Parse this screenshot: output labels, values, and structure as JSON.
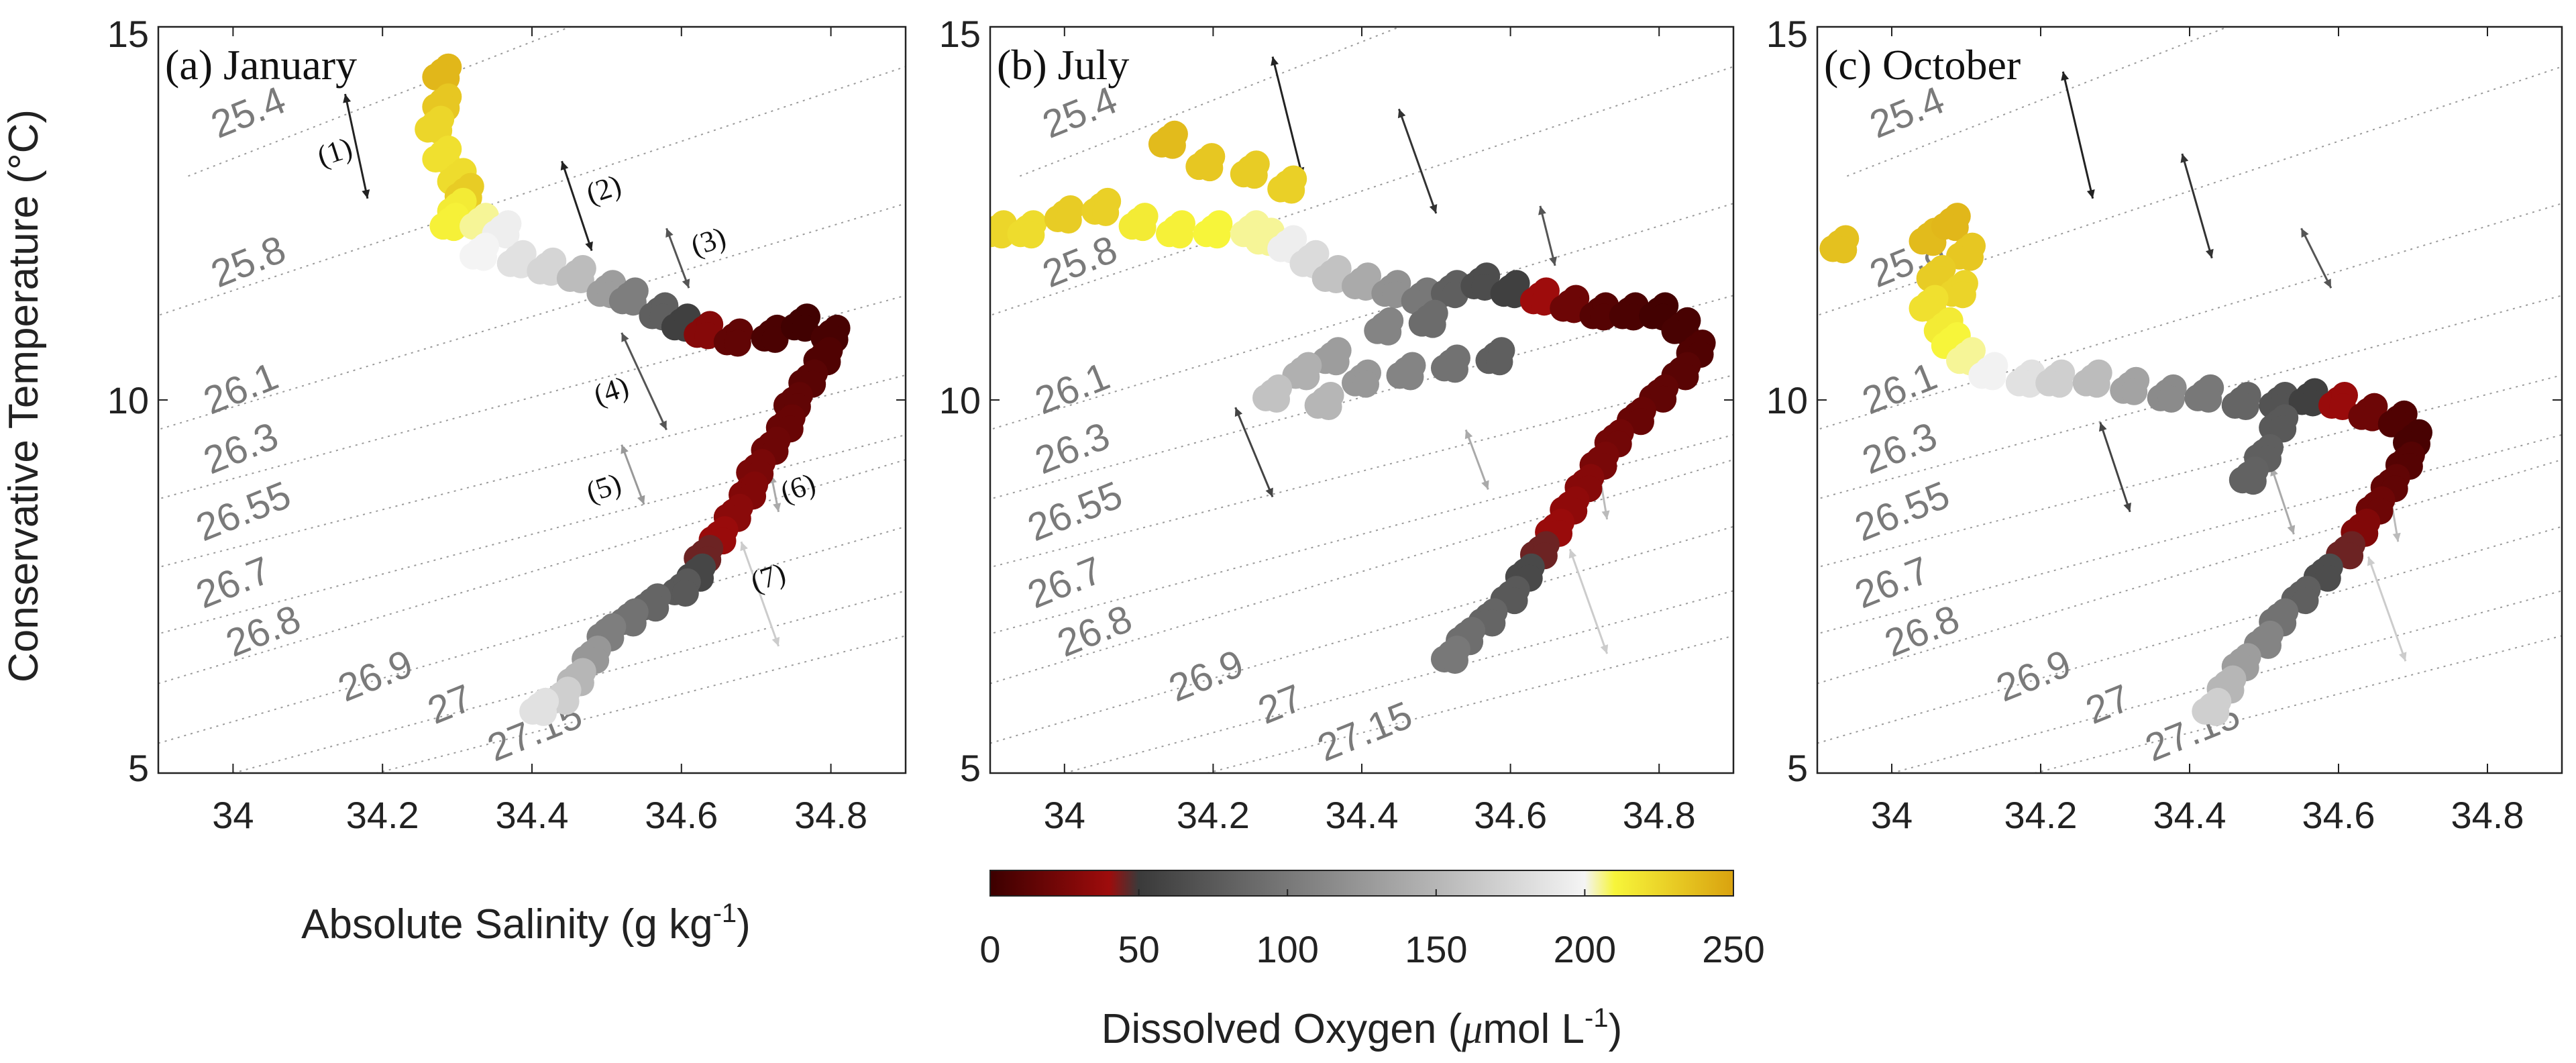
{
  "figure": {
    "ylabel": "Conservative Temperature (°C)",
    "xlabel_main": "Absolute Salinity (g kg",
    "xlabel_sup": "-1",
    "xlabel_end": ")",
    "colorbar": {
      "label_main": "Dissolved Oxygen (",
      "label_mu": "μ",
      "label_mid": "mol L",
      "label_sup": "-1",
      "label_end": ")",
      "ticks": [
        "0",
        "50",
        "100",
        "150",
        "200",
        "250"
      ],
      "range": [
        0,
        250
      ],
      "stops": [
        {
          "v": 0,
          "color": "#3c0000"
        },
        {
          "v": 40,
          "color": "#9e0c0c"
        },
        {
          "v": 50,
          "color": "#3a3a3a"
        },
        {
          "v": 200,
          "color": "#f4f4f4"
        },
        {
          "v": 210,
          "color": "#f7f53a"
        },
        {
          "v": 250,
          "color": "#d9a20f"
        }
      ]
    },
    "isopycnal_color": "#9a9a9a"
  },
  "chart_data": [
    {
      "type": "scatter",
      "panel_label": "(a) January",
      "xlim": [
        33.9,
        34.9
      ],
      "ylim": [
        5,
        15
      ],
      "xticks": [
        "34",
        "34.2",
        "34.4",
        "34.6",
        "34.8"
      ],
      "xtick_values": [
        34.0,
        34.2,
        34.4,
        34.6,
        34.8
      ],
      "yticks": [
        "5",
        "10",
        "15"
      ],
      "ytick_values": [
        5,
        10,
        15
      ],
      "isopycnals": [
        "25.4",
        "25.8",
        "26.1",
        "26.3",
        "26.55",
        "26.7",
        "26.8",
        "26.9",
        "27",
        "27.15"
      ],
      "layer_labels": [
        "(1)",
        "(2)",
        "(3)",
        "(4)",
        "(5)",
        "(6)",
        "(7)"
      ],
      "profile": [
        [
          34.28,
          14.4,
          240
        ],
        [
          34.28,
          14.0,
          232
        ],
        [
          34.27,
          13.7,
          225
        ],
        [
          34.28,
          13.3,
          220
        ],
        [
          34.3,
          13.0,
          222
        ],
        [
          34.31,
          12.8,
          230
        ],
        [
          34.3,
          12.6,
          215
        ],
        [
          34.29,
          12.4,
          212
        ],
        [
          34.33,
          12.4,
          205
        ],
        [
          34.36,
          12.3,
          195
        ],
        [
          34.33,
          12.0,
          200
        ],
        [
          34.38,
          11.9,
          185
        ],
        [
          34.42,
          11.8,
          175
        ],
        [
          34.46,
          11.7,
          155
        ],
        [
          34.5,
          11.5,
          130
        ],
        [
          34.53,
          11.4,
          105
        ],
        [
          34.57,
          11.2,
          80
        ],
        [
          34.6,
          11.05,
          55
        ],
        [
          34.63,
          10.95,
          30
        ],
        [
          34.67,
          10.85,
          15
        ],
        [
          34.72,
          10.9,
          6
        ],
        [
          34.76,
          11.05,
          2
        ],
        [
          34.8,
          10.9,
          5
        ],
        [
          34.79,
          10.6,
          8
        ],
        [
          34.77,
          10.3,
          12
        ],
        [
          34.75,
          10.0,
          15
        ],
        [
          34.74,
          9.7,
          18
        ],
        [
          34.72,
          9.4,
          20
        ],
        [
          34.7,
          9.1,
          25
        ],
        [
          34.69,
          8.8,
          28
        ],
        [
          34.67,
          8.5,
          32
        ],
        [
          34.65,
          8.2,
          38
        ],
        [
          34.63,
          7.95,
          45
        ],
        [
          34.62,
          7.7,
          60
        ],
        [
          34.6,
          7.5,
          75
        ],
        [
          34.56,
          7.3,
          85
        ],
        [
          34.53,
          7.1,
          95
        ],
        [
          34.5,
          6.9,
          105
        ],
        [
          34.48,
          6.6,
          125
        ],
        [
          34.46,
          6.3,
          150
        ],
        [
          34.44,
          6.05,
          170
        ],
        [
          34.41,
          5.9,
          185
        ]
      ]
    },
    {
      "type": "scatter",
      "panel_label": "(b) July",
      "xlim": [
        33.9,
        34.9
      ],
      "ylim": [
        5,
        15
      ],
      "xticks": [
        "34",
        "34.2",
        "34.4",
        "34.6",
        "34.8"
      ],
      "xtick_values": [
        34.0,
        34.2,
        34.4,
        34.6,
        34.8
      ],
      "yticks": [
        "5",
        "10",
        "15"
      ],
      "ytick_values": [
        5,
        10,
        15
      ],
      "isopycnals": [
        "25.4",
        "25.8",
        "26.1",
        "26.3",
        "26.55",
        "26.7",
        "26.8",
        "26.9",
        "27",
        "27.15"
      ],
      "profile": [
        [
          33.91,
          12.3,
          225
        ],
        [
          33.95,
          12.3,
          222
        ],
        [
          34.0,
          12.5,
          230
        ],
        [
          34.05,
          12.6,
          228
        ],
        [
          34.1,
          12.4,
          215
        ],
        [
          34.15,
          12.3,
          212
        ],
        [
          34.2,
          12.3,
          210
        ],
        [
          34.25,
          12.3,
          205
        ],
        [
          34.14,
          13.5,
          238
        ],
        [
          34.19,
          13.2,
          232
        ],
        [
          34.25,
          13.1,
          230
        ],
        [
          34.3,
          12.9,
          228
        ],
        [
          34.27,
          12.2,
          205
        ],
        [
          34.3,
          12.1,
          195
        ],
        [
          34.33,
          11.9,
          180
        ],
        [
          34.36,
          11.7,
          160
        ],
        [
          34.4,
          11.6,
          140
        ],
        [
          34.44,
          11.5,
          120
        ],
        [
          34.48,
          11.4,
          100
        ],
        [
          34.52,
          11.5,
          80
        ],
        [
          34.56,
          11.6,
          65
        ],
        [
          34.6,
          11.5,
          55
        ],
        [
          34.64,
          11.4,
          40
        ],
        [
          34.68,
          11.3,
          20
        ],
        [
          34.72,
          11.2,
          10
        ],
        [
          34.76,
          11.2,
          6
        ],
        [
          34.8,
          11.2,
          3
        ],
        [
          34.83,
          11.0,
          5
        ],
        [
          34.85,
          10.7,
          8
        ],
        [
          34.83,
          10.4,
          12
        ],
        [
          34.8,
          10.1,
          15
        ],
        [
          34.77,
          9.8,
          18
        ],
        [
          34.74,
          9.5,
          22
        ],
        [
          34.72,
          9.2,
          25
        ],
        [
          34.7,
          8.9,
          30
        ],
        [
          34.68,
          8.6,
          34
        ],
        [
          34.66,
          8.3,
          38
        ],
        [
          34.64,
          8.0,
          45
        ],
        [
          34.62,
          7.7,
          62
        ],
        [
          34.6,
          7.4,
          75
        ],
        [
          34.57,
          7.1,
          85
        ],
        [
          34.54,
          6.85,
          92
        ],
        [
          34.52,
          6.6,
          100
        ],
        [
          34.49,
          11.1,
          90
        ],
        [
          34.43,
          11.0,
          110
        ],
        [
          34.36,
          10.6,
          130
        ],
        [
          34.32,
          10.4,
          145
        ],
        [
          34.28,
          10.1,
          160
        ],
        [
          34.35,
          10.0,
          150
        ],
        [
          34.4,
          10.3,
          125
        ],
        [
          34.46,
          10.4,
          110
        ],
        [
          34.52,
          10.5,
          95
        ],
        [
          34.58,
          10.6,
          80
        ]
      ]
    },
    {
      "type": "scatter",
      "panel_label": "(c) October",
      "xlim": [
        33.9,
        34.9
      ],
      "ylim": [
        5,
        15
      ],
      "xticks": [
        "34",
        "34.2",
        "34.4",
        "34.6",
        "34.8"
      ],
      "xtick_values": [
        34.0,
        34.2,
        34.4,
        34.6,
        34.8
      ],
      "yticks": [
        "5",
        "10",
        "15"
      ],
      "ytick_values": [
        5,
        10,
        15
      ],
      "isopycnals": [
        "25.4",
        "25.8",
        "26.1",
        "26.3",
        "26.55",
        "26.7",
        "26.8",
        "26.9",
        "27",
        "27.15"
      ],
      "profile": [
        [
          33.93,
          12.1,
          235
        ],
        [
          34.05,
          12.2,
          238
        ],
        [
          34.08,
          12.4,
          240
        ],
        [
          34.1,
          12.0,
          232
        ],
        [
          34.06,
          11.7,
          230
        ],
        [
          34.09,
          11.5,
          226
        ],
        [
          34.05,
          11.3,
          220
        ],
        [
          34.07,
          11.0,
          215
        ],
        [
          34.08,
          10.8,
          210
        ],
        [
          34.1,
          10.6,
          205
        ],
        [
          34.13,
          10.4,
          198
        ],
        [
          34.18,
          10.3,
          185
        ],
        [
          34.22,
          10.3,
          170
        ],
        [
          34.27,
          10.3,
          155
        ],
        [
          34.32,
          10.2,
          135
        ],
        [
          34.37,
          10.1,
          115
        ],
        [
          34.42,
          10.1,
          100
        ],
        [
          34.47,
          10.0,
          85
        ],
        [
          34.52,
          10.0,
          70
        ],
        [
          34.56,
          10.05,
          55
        ],
        [
          34.6,
          10.0,
          38
        ],
        [
          34.64,
          9.85,
          20
        ],
        [
          34.68,
          9.75,
          8
        ],
        [
          34.7,
          9.5,
          5
        ],
        [
          34.69,
          9.2,
          10
        ],
        [
          34.67,
          8.9,
          15
        ],
        [
          34.65,
          8.6,
          20
        ],
        [
          34.63,
          8.3,
          28
        ],
        [
          34.61,
          8.0,
          45
        ],
        [
          34.58,
          7.7,
          65
        ],
        [
          34.55,
          7.4,
          80
        ],
        [
          34.52,
          7.1,
          95
        ],
        [
          34.5,
          6.8,
          110
        ],
        [
          34.47,
          6.5,
          130
        ],
        [
          34.45,
          6.2,
          150
        ],
        [
          34.43,
          5.9,
          170
        ],
        [
          34.52,
          9.7,
          75
        ],
        [
          34.5,
          9.3,
          80
        ],
        [
          34.48,
          9.0,
          82
        ]
      ]
    }
  ]
}
